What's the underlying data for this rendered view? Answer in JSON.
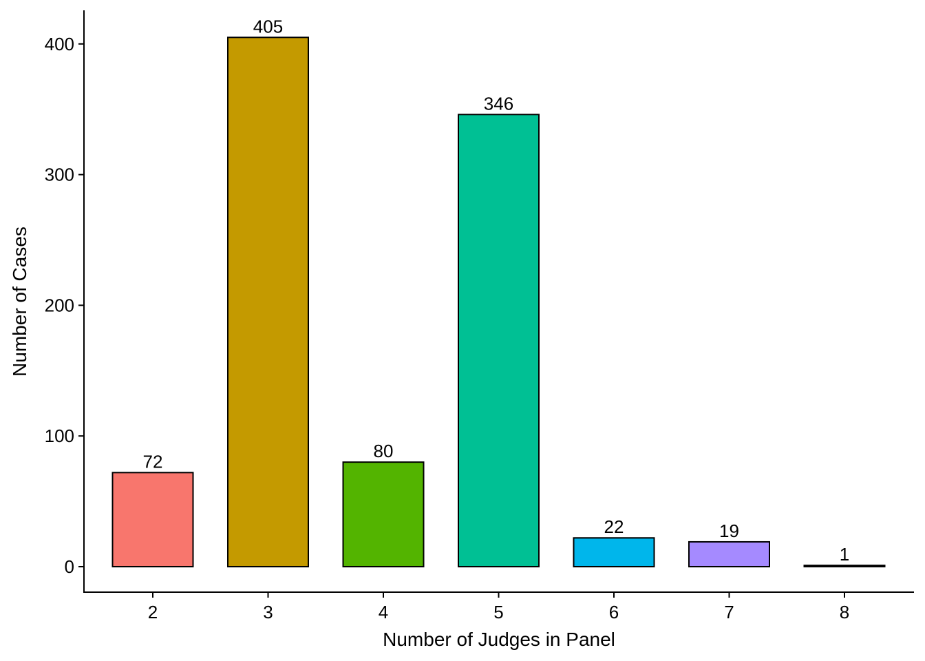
{
  "chart_data": {
    "type": "bar",
    "categories": [
      "2",
      "3",
      "4",
      "5",
      "6",
      "7",
      "8"
    ],
    "values": [
      72,
      405,
      80,
      346,
      22,
      19,
      1
    ],
    "data_labels": [
      "72",
      "405",
      "80",
      "346",
      "22",
      "19",
      "1"
    ],
    "colors": [
      "#F8766D",
      "#C49A00",
      "#53B400",
      "#00C094",
      "#00B6EB",
      "#A58AFF",
      "#FB61D7"
    ],
    "title": "",
    "xlabel": "Number of Judges in Panel",
    "ylabel": "Number of Cases",
    "ylim": [
      0,
      420
    ],
    "yticks": [
      0,
      100,
      200,
      300,
      400
    ],
    "ytick_labels": [
      "0",
      "100",
      "200",
      "300",
      "400"
    ],
    "grid": false,
    "legend": "none"
  }
}
